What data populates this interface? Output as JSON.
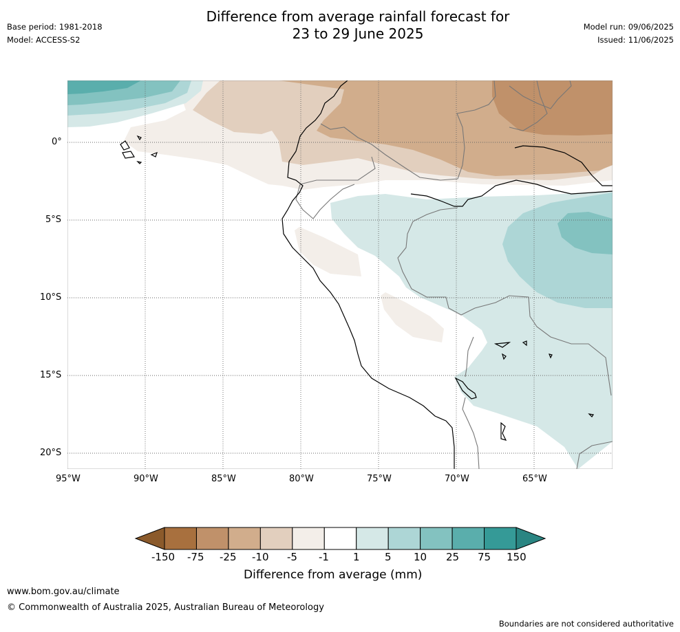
{
  "header": {
    "title_line1": "Difference from average rainfall forecast for",
    "title_line2": "23 to 29 June 2025",
    "base_period": "Base period: 1981-2018",
    "model": "Model: ACCESS-S2",
    "model_run": "Model run: 09/06/2025",
    "issued": "Issued: 11/06/2025"
  },
  "map": {
    "lat_labels": [
      "0°",
      "5°S",
      "10°S",
      "15°S",
      "20°S"
    ],
    "lon_labels": [
      "95°W",
      "90°W",
      "85°W",
      "80°W",
      "75°W",
      "70°W",
      "65°W"
    ]
  },
  "colorbar": {
    "tick_labels": [
      "-150",
      "-75",
      "-25",
      "-10",
      "-5",
      "-1",
      "1",
      "5",
      "10",
      "25",
      "75",
      "150"
    ],
    "colors": [
      "#8b5a2b",
      "#a8703e",
      "#c0916a",
      "#d1ad8c",
      "#e2cfbe",
      "#f3eee9",
      "#ffffff",
      "#d5e8e7",
      "#add6d6",
      "#83c2c0",
      "#5aaeac",
      "#359a97",
      "#2a8582"
    ],
    "label": "Difference from average (mm)"
  },
  "footer": {
    "url": "www.bom.gov.au/climate",
    "copyright": "© Commonwealth of Australia 2025, Australian Bureau of Meteorology",
    "disclaimer": "Boundaries are not considered authoritative"
  }
}
